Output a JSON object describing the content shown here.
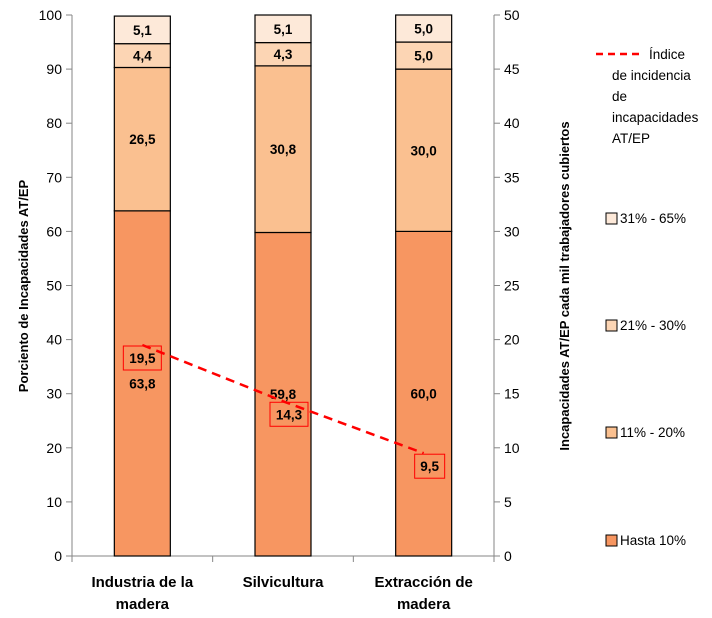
{
  "chart_data": {
    "type": "bar",
    "stacked": true,
    "categories": [
      [
        "Industria de la",
        "madera"
      ],
      [
        "Silvicultura"
      ],
      [
        "Extracción de",
        "madera"
      ]
    ],
    "series": [
      {
        "name": "Hasta 10%",
        "values": [
          63.8,
          59.8,
          60.0
        ],
        "labels": [
          "63,8",
          "59,8",
          "60,0"
        ],
        "color": "#f79661"
      },
      {
        "name": "11% - 20%",
        "values": [
          26.5,
          30.8,
          30.0
        ],
        "labels": [
          "26,5",
          "30,8",
          "30,0"
        ],
        "color": "#fac090"
      },
      {
        "name": "21% - 30%",
        "values": [
          4.4,
          4.3,
          5.0
        ],
        "labels": [
          "4,4",
          "4,3",
          "5,0"
        ],
        "color": "#fcd5b4"
      },
      {
        "name": "31% - 65%",
        "values": [
          5.1,
          5.1,
          5.0
        ],
        "labels": [
          "5,1",
          "5,1",
          "5,0"
        ],
        "color": "#fde9d9"
      }
    ],
    "line_series": {
      "name_lines": [
        "Índice",
        "de incidencia",
        "de",
        "incapacidades",
        "AT/EP"
      ],
      "values": [
        19.5,
        14.3,
        9.5
      ],
      "labels": [
        "19,5",
        "14,3",
        "9,5"
      ],
      "color": "#ff0000",
      "style": "dashed",
      "axis": "right"
    },
    "ylabel": "Porciento de Incapacidades AT/EP",
    "y2label": "Incapacidades AT/EP cada mil trabajadores cubiertos",
    "ylim": [
      0,
      100
    ],
    "y2lim": [
      0,
      50
    ],
    "yticks": [
      "0",
      "10",
      "20",
      "30",
      "40",
      "50",
      "60",
      "70",
      "80",
      "90",
      "100"
    ],
    "y2ticks": [
      "0",
      "5",
      "10",
      "15",
      "20",
      "25",
      "30",
      "35",
      "40",
      "45",
      "50"
    ],
    "legend_position": "right",
    "grid": false
  }
}
